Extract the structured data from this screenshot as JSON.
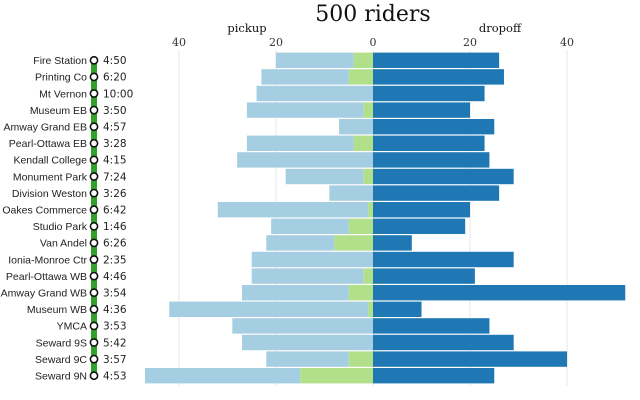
{
  "chart_data": {
    "type": "bar",
    "title": "500 riders",
    "left_axis_label": "pickup",
    "right_axis_label": "dropoff",
    "x_ticks_left": [
      40,
      20,
      0
    ],
    "x_ticks_right": [
      20,
      40
    ],
    "xlim_left": [
      0,
      47
    ],
    "xlim_right": [
      0,
      52
    ],
    "colors": {
      "pickup_light": "#a6cee3",
      "pickup_green": "#b2df8a",
      "dropoff": "#1f78b4",
      "route_line": "#33a02c"
    },
    "stops": [
      {
        "name": "Fire Station",
        "time": "4:50",
        "pickup_blue": 16,
        "pickup_green": 4,
        "dropoff": 26
      },
      {
        "name": "Printing Co",
        "time": "6:20",
        "pickup_blue": 18,
        "pickup_green": 5,
        "dropoff": 27
      },
      {
        "name": "Mt Vernon",
        "time": "10:00",
        "pickup_blue": 24,
        "pickup_green": 0,
        "dropoff": 23
      },
      {
        "name": "Museum EB",
        "time": "3:50",
        "pickup_blue": 24,
        "pickup_green": 2,
        "dropoff": 20
      },
      {
        "name": "Amway Grand EB",
        "time": "4:57",
        "pickup_blue": 7,
        "pickup_green": 0,
        "dropoff": 25
      },
      {
        "name": "Pearl-Ottawa EB",
        "time": "3:28",
        "pickup_blue": 22,
        "pickup_green": 4,
        "dropoff": 23
      },
      {
        "name": "Kendall College",
        "time": "4:15",
        "pickup_blue": 28,
        "pickup_green": 0,
        "dropoff": 24
      },
      {
        "name": "Monument Park",
        "time": "7:24",
        "pickup_blue": 16,
        "pickup_green": 2,
        "dropoff": 29
      },
      {
        "name": "Division Weston",
        "time": "3:26",
        "pickup_blue": 9,
        "pickup_green": 0,
        "dropoff": 26
      },
      {
        "name": "Oakes Commerce",
        "time": "6:42",
        "pickup_blue": 31,
        "pickup_green": 1,
        "dropoff": 20
      },
      {
        "name": "Studio Park",
        "time": "1:46",
        "pickup_blue": 16,
        "pickup_green": 5,
        "dropoff": 19
      },
      {
        "name": "Van Andel",
        "time": "6:26",
        "pickup_blue": 14,
        "pickup_green": 8,
        "dropoff": 8
      },
      {
        "name": "Ionia-Monroe Ctr",
        "time": "2:35",
        "pickup_blue": 25,
        "pickup_green": 0,
        "dropoff": 29
      },
      {
        "name": "Pearl-Ottawa WB",
        "time": "4:46",
        "pickup_blue": 23,
        "pickup_green": 2,
        "dropoff": 21
      },
      {
        "name": "Amway Grand WB",
        "time": "3:54",
        "pickup_blue": 22,
        "pickup_green": 5,
        "dropoff": 52
      },
      {
        "name": "Museum WB",
        "time": "4:36",
        "pickup_blue": 41,
        "pickup_green": 1,
        "dropoff": 10
      },
      {
        "name": "YMCA",
        "time": "3:53",
        "pickup_blue": 29,
        "pickup_green": 0,
        "dropoff": 24
      },
      {
        "name": "Seward 9S",
        "time": "5:42",
        "pickup_blue": 27,
        "pickup_green": 0,
        "dropoff": 29
      },
      {
        "name": "Seward 9C",
        "time": "3:57",
        "pickup_blue": 17,
        "pickup_green": 5,
        "dropoff": 40
      },
      {
        "name": "Seward 9N",
        "time": "4:53",
        "pickup_blue": 32,
        "pickup_green": 15,
        "dropoff": 25
      }
    ]
  }
}
